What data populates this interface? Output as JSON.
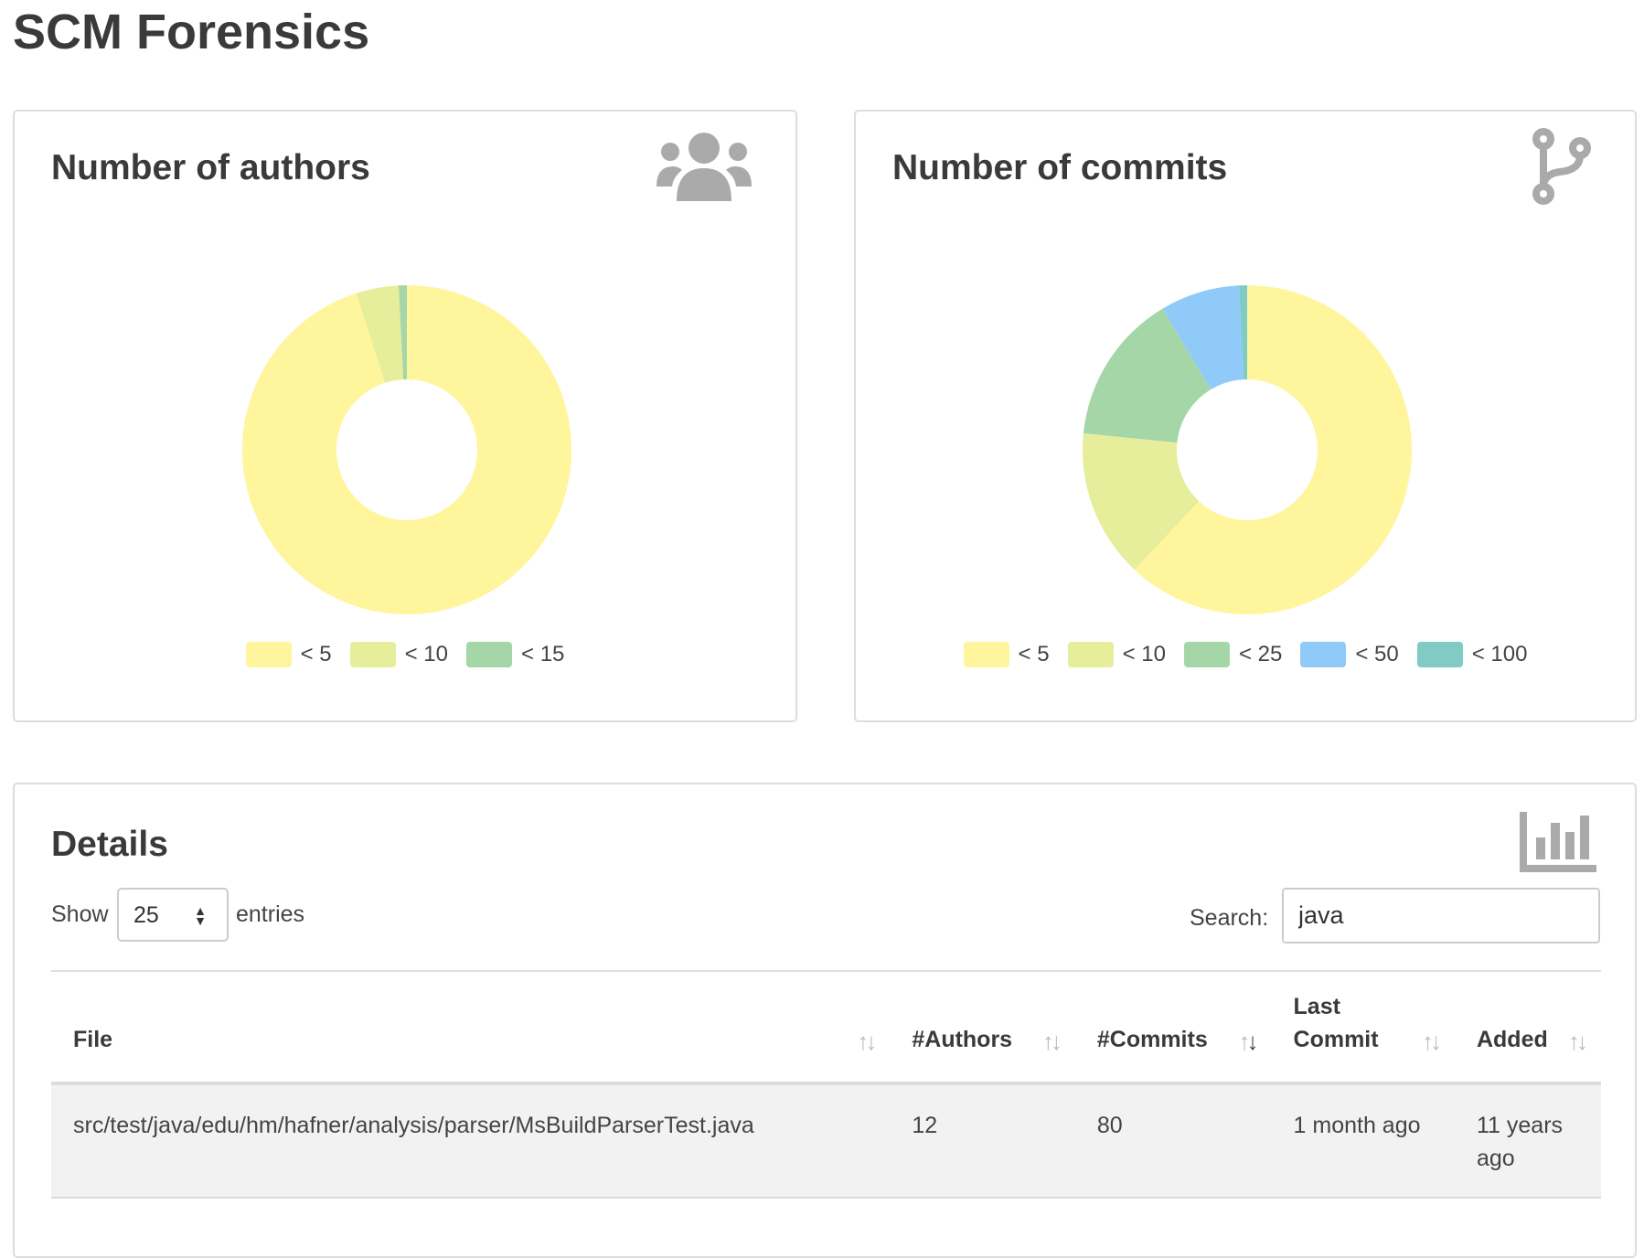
{
  "page_title": "SCM Forensics",
  "colors": {
    "lt5": "#FFF59D",
    "lt10": "#E6EE9C",
    "lt15": "#A5D6A7",
    "lt25": "#A5D6A7",
    "lt50": "#90CAF9",
    "lt100": "#80CBC4"
  },
  "authors_card": {
    "title": "Number of authors",
    "icon": "users-icon",
    "chart_data": {
      "type": "pie",
      "donut": true,
      "categories": [
        "< 5",
        "< 10",
        "< 15"
      ],
      "values": [
        95.0,
        4.2,
        0.8
      ],
      "colors": [
        "#FFF59D",
        "#E6EE9C",
        "#A5D6A7"
      ],
      "legend": "bottom"
    }
  },
  "commits_card": {
    "title": "Number of commits",
    "icon": "code-branch-icon",
    "chart_data": {
      "type": "pie",
      "donut": true,
      "categories": [
        "< 5",
        "< 10",
        "< 25",
        "< 50",
        "< 100"
      ],
      "values": [
        62.0,
        14.6,
        14.8,
        7.8,
        0.8
      ],
      "colors": [
        "#FFF59D",
        "#E6EE9C",
        "#A5D6A7",
        "#90CAF9",
        "#80CBC4"
      ],
      "legend": "bottom"
    }
  },
  "details": {
    "title": "Details",
    "icon": "bar-chart-icon",
    "show_label": "Show",
    "entries_value": "25",
    "entries_label": "entries",
    "search_label": "Search:",
    "search_value": "java",
    "columns": [
      "File",
      "#Authors",
      "#Commits",
      "Last Commit",
      "Added"
    ],
    "sorted_column": "#Commits",
    "sort_direction": "descending",
    "rows": [
      {
        "file": "src/test/java/edu/hm/hafner/analysis/parser/MsBuildParserTest.java",
        "authors": "12",
        "commits": "80",
        "last_commit": "1 month ago",
        "added": "11 years ago"
      }
    ]
  }
}
